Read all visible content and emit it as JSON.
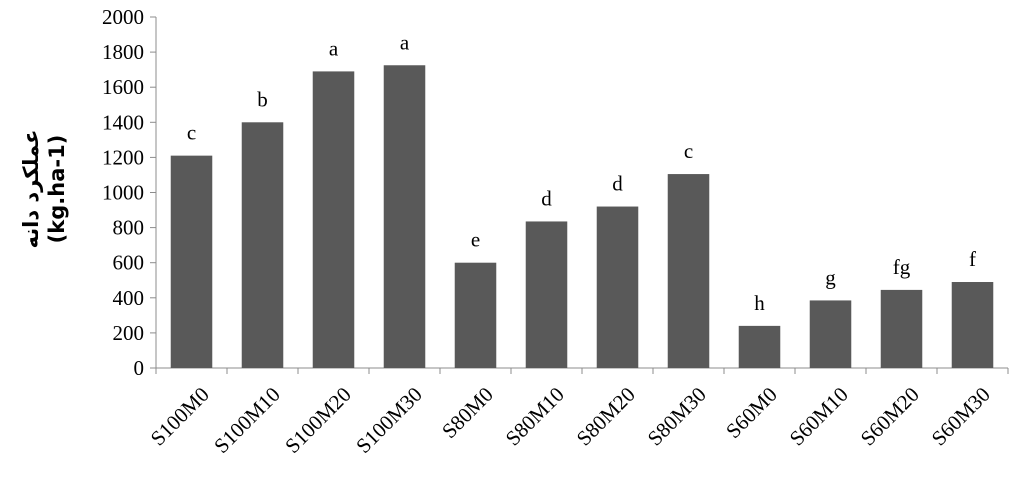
{
  "chart_data": {
    "type": "bar",
    "title": "",
    "xlabel": "",
    "ylabel_line1": "عملکرد دانه",
    "ylabel_line2": "(kg.ha-1)",
    "categories": [
      "S100M0",
      "S100M10",
      "S100M20",
      "S100M30",
      "S80M0",
      "S80M10",
      "S80M20",
      "S80M30",
      "S60M0",
      "S60M10",
      "S60M20",
      "S60M30"
    ],
    "values": [
      1210,
      1400,
      1690,
      1725,
      600,
      835,
      920,
      1105,
      240,
      385,
      445,
      490
    ],
    "letters": [
      "c",
      "b",
      "a",
      "a",
      "e",
      "d",
      "d",
      "c",
      "h",
      "g",
      "fg",
      "f"
    ],
    "yticks": [
      "0",
      "200",
      "400",
      "600",
      "800",
      "1000",
      "1200",
      "1400",
      "1600",
      "1800",
      "2000"
    ],
    "ylim": [
      0,
      2000
    ],
    "bar_color": "#595959",
    "grid": false,
    "legend": "none"
  }
}
